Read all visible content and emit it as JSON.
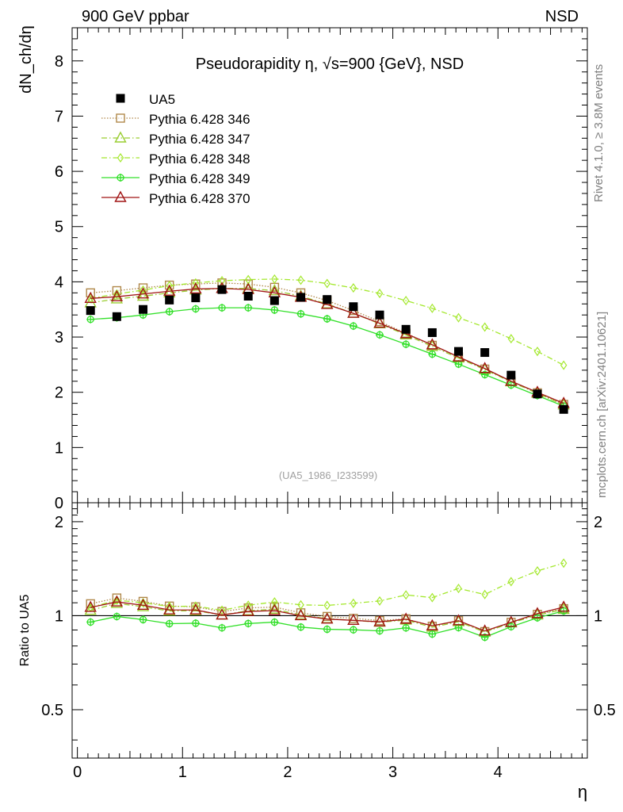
{
  "header": {
    "left": "900 GeV ppbar",
    "right": "NSD"
  },
  "side_texts": {
    "rivet": "Rivet 4.1.0, ≥ 3.8M events",
    "mcplots": "mcplots.cern.ch [arXiv:2401.10621]"
  },
  "watermark": "(UA5_1986_I233599)",
  "chart_data": {
    "type": "scatter",
    "title": "Pseudorapidity η, √s=900 {GeV}, NSD",
    "xlabel": "η",
    "ylabel": "dN_ch/dη",
    "ratio_ylabel": "Ratio to UA5",
    "xlim": [
      -0.05,
      4.85
    ],
    "ylim": [
      0,
      8.6
    ],
    "ratio_ylim": [
      0.35,
      2.3
    ],
    "x_ticks": [
      "0",
      "1",
      "2",
      "3",
      "4"
    ],
    "y_ticks": [
      "0",
      "1",
      "2",
      "3",
      "4",
      "5",
      "6",
      "7",
      "8"
    ],
    "ratio_ticks": [
      "0.5",
      "1",
      "2"
    ],
    "x": [
      0.125,
      0.375,
      0.625,
      0.875,
      1.125,
      1.375,
      1.625,
      1.875,
      2.125,
      2.375,
      2.625,
      2.875,
      3.125,
      3.375,
      3.625,
      3.875,
      4.125,
      4.375,
      4.625
    ],
    "data": {
      "name": "UA5",
      "values": [
        3.48,
        3.37,
        3.5,
        3.67,
        3.71,
        3.86,
        3.74,
        3.66,
        3.72,
        3.68,
        3.55,
        3.4,
        3.14,
        3.08,
        2.74,
        2.72,
        2.31,
        1.97,
        1.69
      ]
    },
    "series": [
      {
        "name": "Pythia 6.428 346",
        "color": "#b0884a",
        "dash": "dotted",
        "marker": "square-open",
        "values": [
          3.8,
          3.84,
          3.89,
          3.94,
          3.96,
          3.98,
          3.96,
          3.9,
          3.8,
          3.66,
          3.48,
          3.28,
          3.07,
          2.85,
          2.64,
          2.42,
          2.2,
          1.99,
          1.78
        ]
      },
      {
        "name": "Pythia 6.428 347",
        "color": "#9acd32",
        "dash": "dashdot",
        "marker": "triangle-open",
        "values": [
          3.62,
          3.69,
          3.74,
          3.8,
          3.85,
          3.88,
          3.88,
          3.84,
          3.74,
          3.6,
          3.43,
          3.24,
          3.04,
          2.83,
          2.62,
          2.41,
          2.19,
          1.98,
          1.77
        ]
      },
      {
        "name": "Pythia 6.428 348",
        "color": "#a4e82e",
        "dash": "dashdot",
        "marker": "diamond-open",
        "values": [
          3.7,
          3.78,
          3.85,
          3.93,
          3.98,
          4.02,
          4.04,
          4.05,
          4.03,
          3.97,
          3.89,
          3.79,
          3.66,
          3.52,
          3.35,
          3.18,
          2.97,
          2.74,
          2.49
        ]
      },
      {
        "name": "Pythia 6.428 349",
        "color": "#33e02a",
        "dash": "solid",
        "marker": "cross-circle",
        "values": [
          3.32,
          3.35,
          3.4,
          3.46,
          3.51,
          3.53,
          3.53,
          3.49,
          3.42,
          3.33,
          3.2,
          3.04,
          2.87,
          2.69,
          2.51,
          2.32,
          2.13,
          1.94,
          1.75
        ]
      },
      {
        "name": "Pythia 6.428 370",
        "color": "#a01414",
        "dash": "solid",
        "marker": "triangle-open",
        "values": [
          3.7,
          3.73,
          3.78,
          3.83,
          3.87,
          3.88,
          3.86,
          3.8,
          3.72,
          3.59,
          3.43,
          3.25,
          3.06,
          2.86,
          2.64,
          2.43,
          2.2,
          2.0,
          1.8
        ]
      }
    ]
  }
}
